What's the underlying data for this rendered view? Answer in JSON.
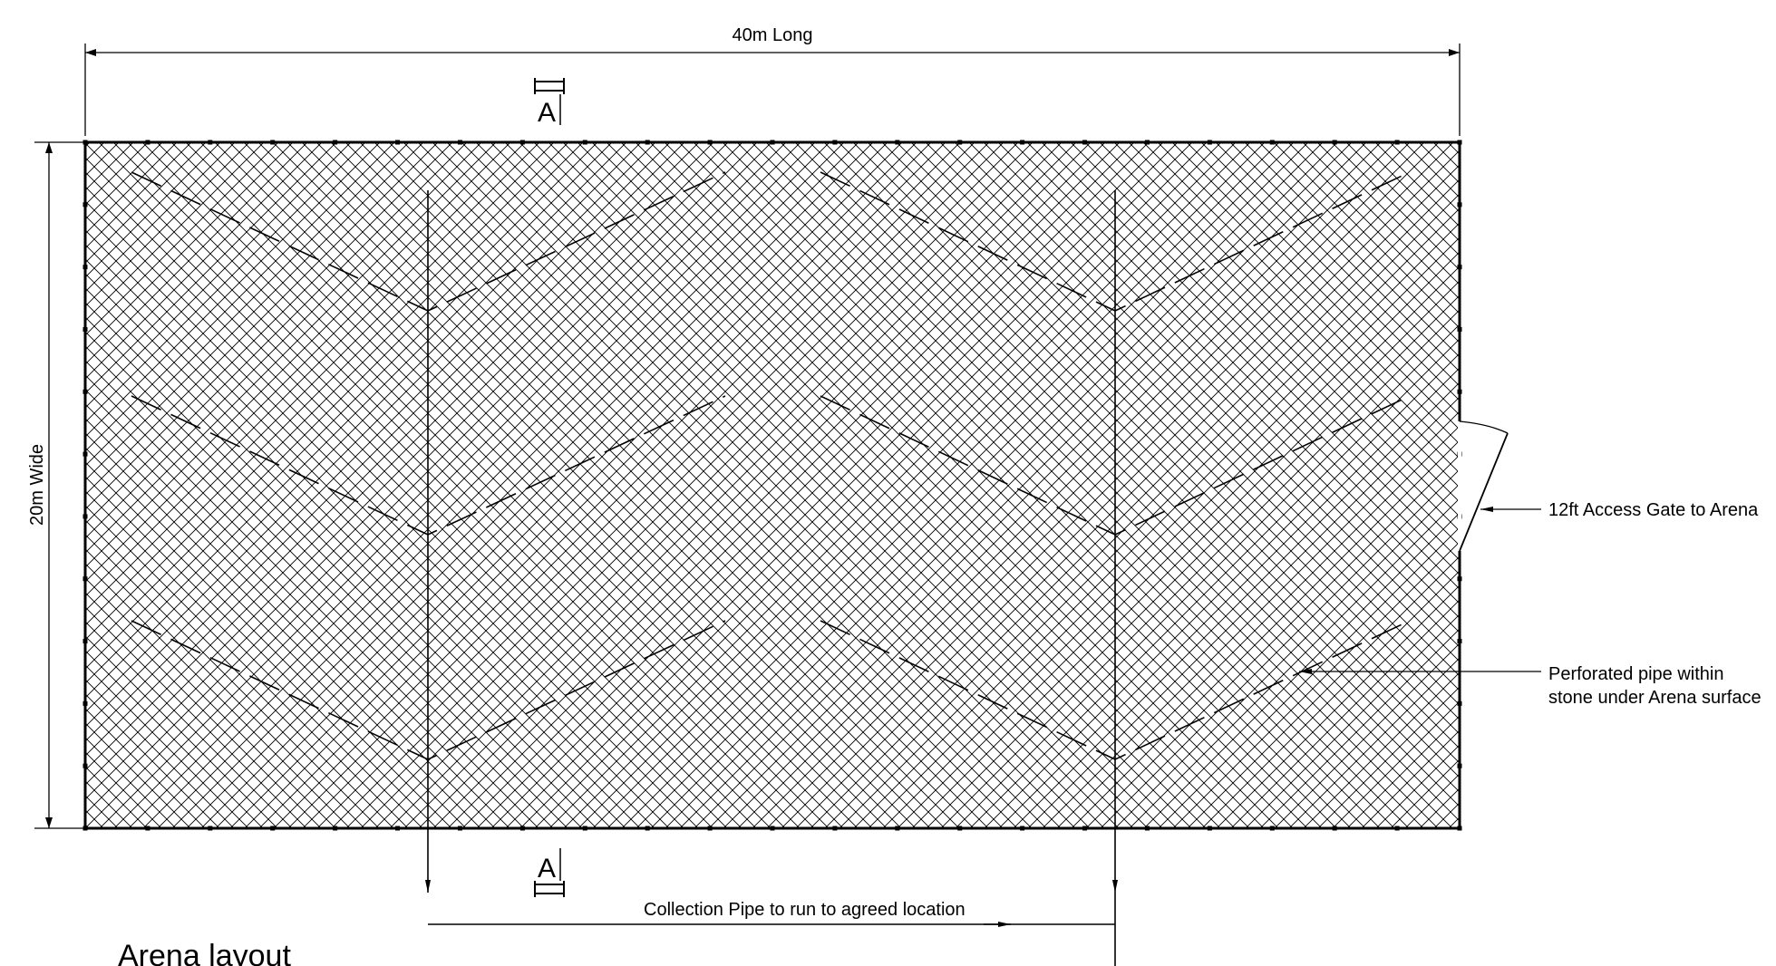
{
  "dimensions": {
    "length_label": "40m Long",
    "width_label": "20m Wide"
  },
  "section_marker": {
    "top_label": "A",
    "bottom_label": "A"
  },
  "annotations": {
    "gate": "12ft Access Gate to Arena",
    "pipe_line1": "Perforated pipe within",
    "pipe_line2": "stone under Arena surface",
    "collection": "Collection Pipe to run to agreed location"
  },
  "title": "Arena layout"
}
